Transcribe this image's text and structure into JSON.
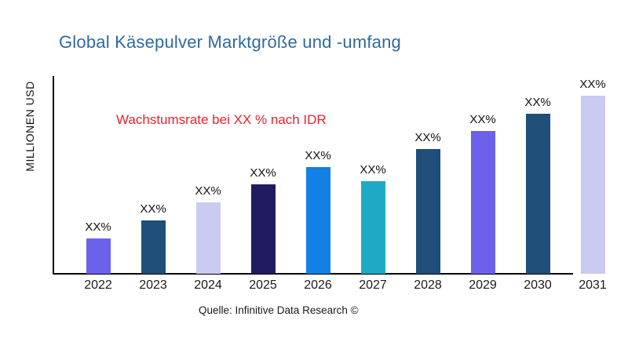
{
  "title": "Global Käsepulver Marktgröße und -umfang",
  "colors": {
    "title": "#2f6a9f",
    "annotation": "#e8212e",
    "axis": "#000000",
    "bar_label": "#111111"
  },
  "chart_data": {
    "type": "bar",
    "title": "Global Käsepulver Marktgröße und -umfang",
    "xlabel": "",
    "ylabel": "MILLIONEN USD",
    "annotation": "Wachstumsrate bei XX % nach IDR",
    "source": "Quelle: Infinitive Data Research ©",
    "grid": false,
    "legend": false,
    "categories": [
      "2022",
      "2023",
      "2024",
      "2025",
      "2026",
      "2027",
      "2028",
      "2029",
      "2030",
      "2031"
    ],
    "bar_labels": [
      "XX%",
      "XX%",
      "XX%",
      "XX%",
      "XX%",
      "XX%",
      "XX%",
      "XX%",
      "XX%",
      "XX%"
    ],
    "values_relative_pct_of_max": [
      20,
      30,
      40,
      50,
      60,
      52,
      70,
      80,
      90,
      100
    ],
    "bar_colors": [
      "#6c61ea",
      "#1f4e7a",
      "#c9cbf0",
      "#211b61",
      "#1280e4",
      "#1ea9c5",
      "#1f4e7a",
      "#6c61ea",
      "#1f4e7a",
      "#c9cbf0"
    ],
    "ylim_note": "no numeric ticks shown; values are placeholders (XX%)"
  }
}
